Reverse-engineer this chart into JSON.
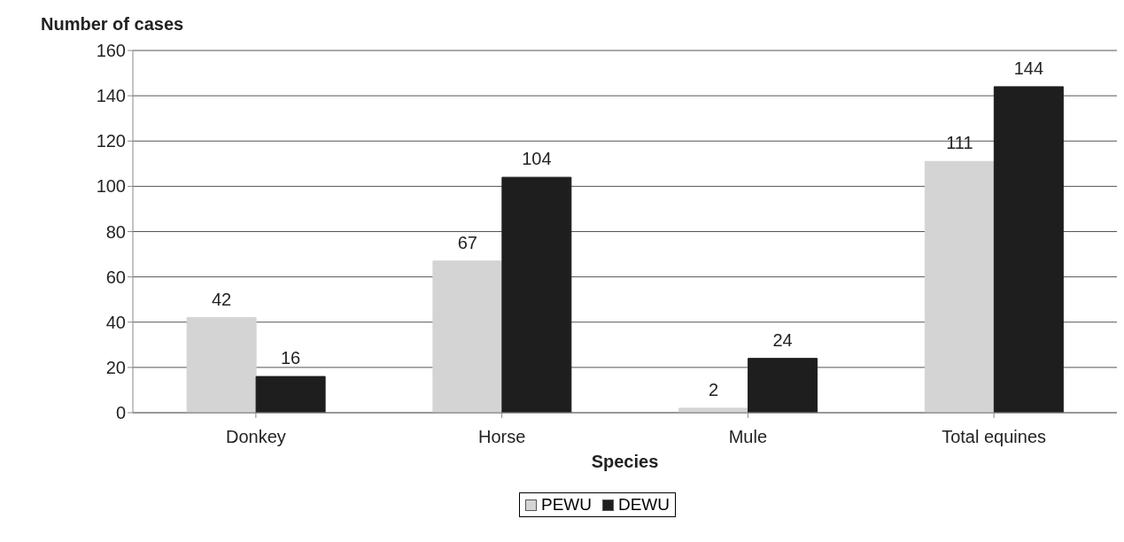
{
  "chart_data": {
    "type": "bar",
    "xlabel": "Species",
    "ylabel": "Number of cases",
    "categories": [
      "Donkey",
      "Horse",
      "Mule",
      "Total equines"
    ],
    "series": [
      {
        "name": "PEWU",
        "color": "#d4d4d4",
        "values": [
          42,
          67,
          2,
          111
        ]
      },
      {
        "name": "DEWU",
        "color": "#1e1e1e",
        "values": [
          16,
          104,
          24,
          144
        ]
      }
    ],
    "ylim": [
      0,
      160
    ],
    "yticks": [
      0,
      20,
      40,
      60,
      80,
      100,
      120,
      140,
      160
    ],
    "grid": "y",
    "legend": "bottom",
    "data_labels": true
  }
}
